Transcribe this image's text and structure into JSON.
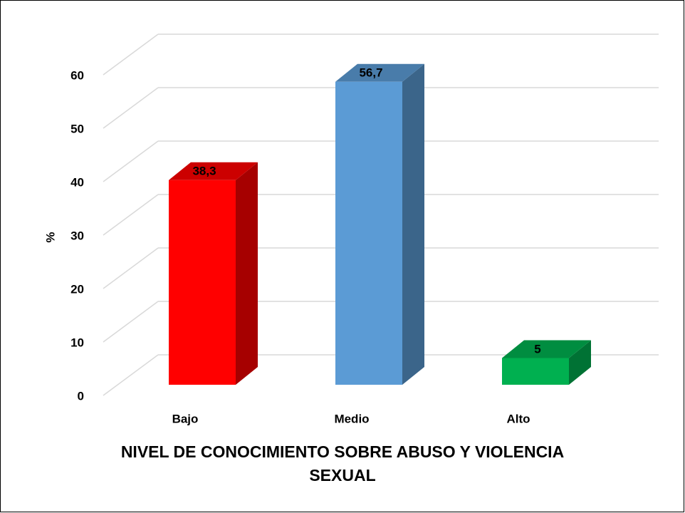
{
  "chart_data": {
    "type": "bar3d",
    "ylabel": "%",
    "xlabel": "NIVEL DE CONOCIMIENTO SOBRE ABUSO Y VIOLENCIA SEXUAL",
    "categories": [
      "Bajo",
      "Medio",
      "Alto"
    ],
    "values": [
      38.3,
      56.7,
      5
    ],
    "value_labels": [
      "38,3",
      "56,7",
      "5"
    ],
    "colors": [
      "#ff0000",
      "#5b9bd5",
      "#00b050"
    ],
    "ylim": [
      0,
      60
    ],
    "yticks": [
      0,
      10,
      20,
      30,
      40,
      50,
      60
    ],
    "grid": true
  }
}
